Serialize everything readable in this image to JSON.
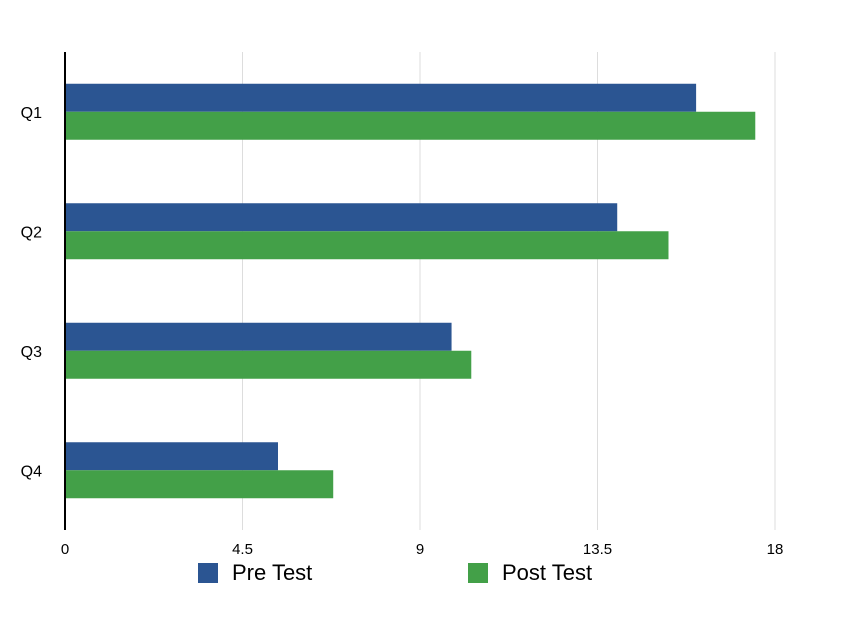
{
  "chart_data": {
    "type": "bar",
    "orientation": "horizontal",
    "title": "",
    "xlabel": "",
    "ylabel": "",
    "categories": [
      "Q1",
      "Q2",
      "Q3",
      "Q4"
    ],
    "series": [
      {
        "name": "Pre Test",
        "values": [
          16,
          14,
          9.8,
          5.4
        ],
        "color": "#2b5592"
      },
      {
        "name": "Post Test",
        "values": [
          17.5,
          15.3,
          10.3,
          6.8
        ],
        "color": "#43a048"
      }
    ],
    "xlim": [
      0,
      18
    ],
    "xticks": [
      "0",
      "4.5",
      "9",
      "13.5",
      "18"
    ],
    "grid": true,
    "legend_position": "bottom"
  }
}
